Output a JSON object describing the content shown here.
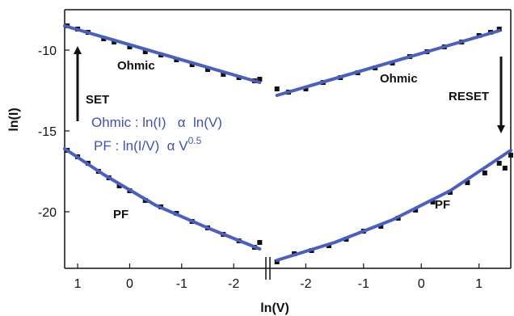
{
  "chart_data": {
    "type": "scatter",
    "title": "",
    "xlabel": "ln(V)",
    "ylabel": "ln(I)",
    "ylim": [
      -23.5,
      -7.5
    ],
    "y_ticks": [
      -10,
      -15,
      -20
    ],
    "x_axis_broken": true,
    "left_panel": {
      "xlim": [
        1.25,
        -2.65
      ],
      "x_ticks": [
        1,
        0,
        -1,
        -2
      ]
    },
    "right_panel": {
      "xlim": [
        -2.65,
        1.55
      ],
      "x_ticks": [
        -2,
        -1,
        0,
        1
      ]
    },
    "colors": {
      "fit": "#4a5fc1",
      "data": "#111111",
      "annotation_text": "#3f51b5"
    },
    "series": [
      {
        "panel": "left",
        "region": "ohmic",
        "label": "Ohmic",
        "fit": {
          "x": [
            1.25,
            -2.5
          ],
          "y": [
            -8.5,
            -12.0
          ]
        },
        "points": [
          [
            1.2,
            -8.5
          ],
          [
            1.0,
            -8.7
          ],
          [
            0.8,
            -8.9
          ],
          [
            0.5,
            -9.3
          ],
          [
            0.3,
            -9.5
          ],
          [
            0.0,
            -9.8
          ],
          [
            -0.3,
            -10.1
          ],
          [
            -0.6,
            -10.3
          ],
          [
            -0.9,
            -10.6
          ],
          [
            -1.2,
            -10.9
          ],
          [
            -1.5,
            -11.2
          ],
          [
            -1.8,
            -11.5
          ],
          [
            -2.1,
            -11.7
          ],
          [
            -2.4,
            -11.9
          ],
          [
            -2.5,
            -11.8
          ]
        ]
      },
      {
        "panel": "left",
        "region": "pf",
        "label": "PF",
        "fit": {
          "x": [
            1.25,
            0.5,
            -0.5,
            -1.5,
            -2.5
          ],
          "y": [
            -16.1,
            -17.7,
            -19.6,
            -21.0,
            -22.3
          ]
        },
        "points": [
          [
            1.2,
            -16.2
          ],
          [
            1.0,
            -16.6
          ],
          [
            0.8,
            -17.0
          ],
          [
            0.6,
            -17.5
          ],
          [
            0.4,
            -17.9
          ],
          [
            0.2,
            -18.4
          ],
          [
            0.0,
            -18.7
          ],
          [
            -0.3,
            -19.3
          ],
          [
            -0.6,
            -19.7
          ],
          [
            -0.9,
            -20.1
          ],
          [
            -1.2,
            -20.6
          ],
          [
            -1.5,
            -21.0
          ],
          [
            -1.8,
            -21.4
          ],
          [
            -2.1,
            -21.8
          ],
          [
            -2.4,
            -22.2
          ],
          [
            -2.5,
            -21.9
          ]
        ]
      },
      {
        "panel": "right",
        "region": "ohmic",
        "label": "Ohmic",
        "fit": {
          "x": [
            -2.5,
            1.35
          ],
          "y": [
            -12.8,
            -8.8
          ]
        },
        "points": [
          [
            -2.5,
            -12.4
          ],
          [
            -2.3,
            -12.6
          ],
          [
            -2.0,
            -12.4
          ],
          [
            -1.7,
            -12.0
          ],
          [
            -1.4,
            -11.7
          ],
          [
            -1.1,
            -11.4
          ],
          [
            -0.8,
            -11.1
          ],
          [
            -0.5,
            -10.8
          ],
          [
            -0.2,
            -10.4
          ],
          [
            0.1,
            -10.1
          ],
          [
            0.4,
            -9.8
          ],
          [
            0.7,
            -9.5
          ],
          [
            1.0,
            -9.1
          ],
          [
            1.2,
            -8.9
          ],
          [
            1.35,
            -8.7
          ]
        ]
      },
      {
        "panel": "right",
        "region": "pf",
        "label": "PF",
        "fit": {
          "x": [
            -2.5,
            -1.5,
            -0.5,
            0.5,
            1.55
          ],
          "y": [
            -23.0,
            -21.9,
            -20.5,
            -18.7,
            -16.2
          ]
        },
        "points": [
          [
            -2.5,
            -23.1
          ],
          [
            -2.2,
            -22.6
          ],
          [
            -1.9,
            -22.4
          ],
          [
            -1.6,
            -22.1
          ],
          [
            -1.3,
            -21.7
          ],
          [
            -1.0,
            -21.2
          ],
          [
            -0.7,
            -20.9
          ],
          [
            -0.4,
            -20.4
          ],
          [
            -0.1,
            -19.9
          ],
          [
            0.2,
            -19.4
          ],
          [
            0.5,
            -18.8
          ],
          [
            0.8,
            -18.2
          ],
          [
            1.1,
            -17.6
          ],
          [
            1.35,
            -17.0
          ],
          [
            1.45,
            -17.3
          ],
          [
            1.55,
            -16.5
          ]
        ]
      }
    ],
    "annotations": {
      "set": "SET",
      "reset": "RESET",
      "ohmic_left": "Ohmic",
      "ohmic_right": "Ohmic",
      "pf_left": "PF",
      "pf_right": "PF",
      "eq_ohmic": "Ohmic : ln(I)   α  ln(V)",
      "eq_pf_main": "PF : ln(I/V)  α V",
      "eq_pf_exp": "0.5"
    }
  }
}
